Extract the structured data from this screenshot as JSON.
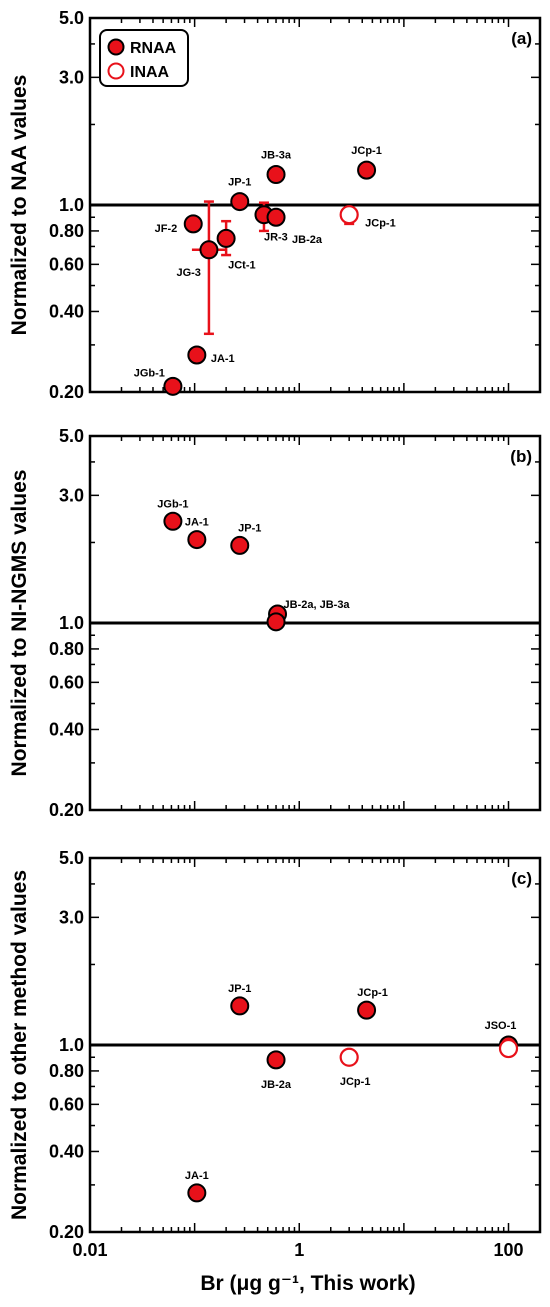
{
  "colors": {
    "rnaa_fill": "#e8111a",
    "inaa_stroke": "#e8111a",
    "errorbar": "#e8111a",
    "axis": "#000000"
  },
  "legend": {
    "placement": "top-left",
    "rnaa": "RNAA",
    "inaa": "INAA"
  },
  "xlabel": "Br (μg g⁻¹, This work)",
  "xlim": [
    0.01,
    200
  ],
  "x_ticks": [
    {
      "v": 0.01,
      "label": "0.01"
    },
    {
      "v": 1,
      "label": "1"
    },
    {
      "v": 100,
      "label": "100"
    }
  ],
  "y_ticks": [
    {
      "v": 5.0,
      "label": "5.0"
    },
    {
      "v": 3.0,
      "label": "3.0"
    },
    {
      "v": 1.0,
      "label": "1.0"
    },
    {
      "v": 0.8,
      "label": "0.80"
    },
    {
      "v": 0.6,
      "label": "0.60"
    },
    {
      "v": 0.4,
      "label": "0.40"
    },
    {
      "v": 0.2,
      "label": "0.20"
    }
  ],
  "chart_data": [
    {
      "type": "scatter",
      "panel": "(a)",
      "ylabel": "Normalized to NAA values",
      "xscale": "log",
      "yscale": "log",
      "xlim": [
        0.01,
        200
      ],
      "ylim": [
        0.2,
        5.0
      ],
      "reference_line": 1.0,
      "legend": [
        "RNAA",
        "INAA"
      ],
      "points": [
        {
          "label": "JGb-1",
          "x": 0.062,
          "y": 0.21,
          "method": "RNAA"
        },
        {
          "label": "JA-1",
          "x": 0.105,
          "y": 0.275,
          "method": "RNAA"
        },
        {
          "label": "JF-2",
          "x": 0.097,
          "y": 0.85,
          "method": "RNAA"
        },
        {
          "label": "JG-3",
          "x": 0.137,
          "y": 0.68,
          "method": "RNAA",
          "yerr": [
            0.33,
            1.03
          ]
        },
        {
          "label": "JCt-1",
          "x": 0.2,
          "y": 0.75,
          "method": "RNAA",
          "yerr": [
            0.65,
            0.87
          ]
        },
        {
          "label": "JP-1",
          "x": 0.27,
          "y": 1.03,
          "method": "RNAA"
        },
        {
          "label": "JR-3",
          "x": 0.46,
          "y": 0.92,
          "method": "RNAA",
          "yerr": [
            0.8,
            1.02
          ]
        },
        {
          "label": "JB-2a",
          "x": 0.6,
          "y": 0.9,
          "method": "RNAA"
        },
        {
          "label": "JB-3a",
          "x": 0.6,
          "y": 1.3,
          "method": "RNAA"
        },
        {
          "label": "JCp-1",
          "x": 4.4,
          "y": 1.35,
          "method": "RNAA"
        },
        {
          "label": "JCp-1",
          "x": 3.0,
          "y": 0.92,
          "method": "INAA",
          "yerr": [
            0.85,
            0.96
          ]
        }
      ]
    },
    {
      "type": "scatter",
      "panel": "(b)",
      "ylabel": "Normalized to NI-NGMS values",
      "xscale": "log",
      "yscale": "log",
      "xlim": [
        0.01,
        200
      ],
      "ylim": [
        0.2,
        5.0
      ],
      "reference_line": 1.0,
      "points": [
        {
          "label": "JGb-1",
          "x": 0.062,
          "y": 2.4,
          "method": "RNAA"
        },
        {
          "label": "JA-1",
          "x": 0.105,
          "y": 2.05,
          "method": "RNAA"
        },
        {
          "label": "JP-1",
          "x": 0.27,
          "y": 1.95,
          "method": "RNAA"
        },
        {
          "label": "JB-2a, JB-3a",
          "x": 0.62,
          "y": 1.08,
          "method": "RNAA"
        },
        {
          "label": "",
          "x": 0.6,
          "y": 1.01,
          "method": "RNAA"
        }
      ]
    },
    {
      "type": "scatter",
      "panel": "(c)",
      "ylabel": "Normalized to other method values",
      "xscale": "log",
      "yscale": "log",
      "xlim": [
        0.01,
        200
      ],
      "ylim": [
        0.2,
        5.0
      ],
      "reference_line": 1.0,
      "points": [
        {
          "label": "JA-1",
          "x": 0.105,
          "y": 0.28,
          "method": "RNAA"
        },
        {
          "label": "JP-1",
          "x": 0.27,
          "y": 1.4,
          "method": "RNAA"
        },
        {
          "label": "JB-2a",
          "x": 0.6,
          "y": 0.88,
          "method": "RNAA"
        },
        {
          "label": "JCp-1",
          "x": 4.4,
          "y": 1.35,
          "method": "RNAA"
        },
        {
          "label": "JCp-1",
          "x": 3.0,
          "y": 0.9,
          "method": "INAA"
        },
        {
          "label": "JSO-1",
          "x": 100,
          "y": 1.0,
          "method": "RNAA"
        },
        {
          "label": "",
          "x": 100,
          "y": 0.97,
          "method": "INAA"
        }
      ]
    }
  ]
}
